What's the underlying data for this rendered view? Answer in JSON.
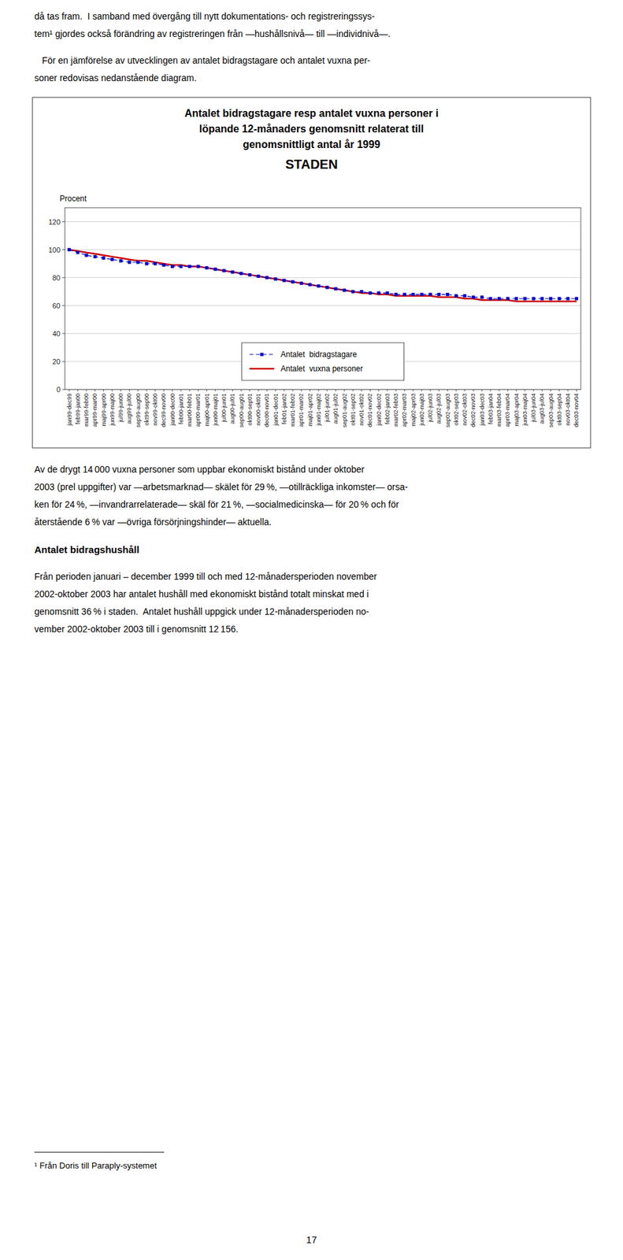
{
  "chart_data": {
    "type": "line",
    "title": "Antalet bidragstagare resp antalet vuxna personer i\nlöpande 12-månaders genomsnitt relaterat till\ngenomsnittligt antal år 1999",
    "subtitle": "STADEN",
    "ylabel": "Procent",
    "categories": [
      "jan99-dec99",
      "feb99-jan00",
      "mar99-feb00",
      "apr99-mar00",
      "maj99-apr00",
      "jun99-maj00",
      "jul99-jun00",
      "aug99-jul00",
      "sep99-aug00",
      "okt99-sep00",
      "nov99-okt00",
      "dec99-nov00",
      "jan00-dec00",
      "feb00-jan01",
      "mar00-feb01",
      "apr00-mar01",
      "maj00-apr01",
      "jun00-maj01",
      "jul00-jun01",
      "aug00-jul01",
      "sep00-aug01",
      "okt00-sep01",
      "nov00-okt01",
      "dec00-nov01",
      "jan01-dec01",
      "feb01-jan02",
      "mar01-feb02",
      "apr01-mar02",
      "maj01-apr02",
      "jun01-maj02",
      "jul01-jun02",
      "aug01-jul02",
      "sep01-aug02",
      "okt01-sep02",
      "nov01-okt02",
      "dec01-nov02",
      "jan02-dec02",
      "feb02-jan03",
      "mar02-feb03",
      "apr02-mar03",
      "maj02-apr03",
      "jun02-maj03",
      "jul02-jun03",
      "aug02-jul03",
      "sep02-aug03",
      "okt02-sep03",
      "nov02-okt03",
      "dec02-nov03",
      "jan03-dec03",
      "feb03-jan04",
      "mar03-feb04",
      "apr03-mar04",
      "maj03-apr04",
      "jun03-maj04",
      "jul03-jun04",
      "aug03-jul04",
      "sep03-aug04",
      "okt03-sep04",
      "nov03-okt04",
      "dec03-nov04"
    ],
    "series": [
      {
        "name": "Antalet  bidragstagare",
        "color": "#0000CC",
        "line_style": "dashed",
        "marker": "square",
        "values": [
          100,
          98,
          96,
          95,
          94,
          93,
          92,
          91,
          91,
          90,
          90,
          89,
          88,
          88,
          88,
          88,
          87,
          86,
          85,
          84,
          83,
          82,
          81,
          80,
          79,
          78,
          77,
          76,
          75,
          74,
          73,
          72,
          71,
          70,
          70,
          69,
          69,
          69,
          68,
          68,
          68,
          68,
          68,
          68,
          68,
          67,
          67,
          66,
          66,
          65,
          65,
          65,
          65,
          65,
          65,
          65,
          65,
          65,
          65,
          65
        ]
      },
      {
        "name": "Antalet  vuxna personer",
        "color": "#CC0000",
        "line_style": "solid",
        "values": [
          100,
          99,
          98,
          97,
          96,
          95,
          94,
          93,
          92,
          92,
          91,
          90,
          89,
          89,
          88,
          88,
          87,
          86,
          85,
          84,
          83,
          82,
          81,
          80,
          79,
          78,
          77,
          76,
          75,
          74,
          73,
          72,
          71,
          70,
          69,
          69,
          68,
          68,
          67,
          67,
          67,
          67,
          67,
          66,
          66,
          66,
          65,
          65,
          64,
          64,
          64,
          64,
          63,
          63,
          63,
          63,
          63,
          63,
          63,
          63
        ]
      }
    ],
    "ylim": [
      0,
      130
    ],
    "yticks": [
      0,
      20,
      40,
      60,
      80,
      100,
      120
    ],
    "grid": true,
    "legend": "bottom"
  },
  "page": {
    "text_above": [
      [
        "då tas fram.  I samband med övergång till nytt dokumentations- och registreringssys-",
        "tem¹ gjordes också förändring av registreringen från ―hushållsnivå― till ―individnivå―."
      ],
      [
        "   För en jämförelse av utvecklingen av antalet bidragstagare och antalet vuxna per-",
        "soner redovisas nedanstående diagram."
      ]
    ],
    "text_below": [
      [
        "Av de drygt 14 000 vuxna personer som uppbar ekonomiskt bistånd under oktober",
        "2003 (prel uppgifter) var ―arbetsmarknad― skälet för 29 %, ―otillräckliga inkomster― orsa-",
        "ken för 24 %, ―invandrarrelaterade― skäl för 21 %, ―socialmedicinska― för 20 % och för",
        "återstående 6 % var ―övriga försörjningshinder― aktuella."
      ]
    ],
    "heading": "Antalet bidragshushåll",
    "text_after_heading": [
      [
        "Från perioden januari – december 1999 till och med 12-månadersperioden november",
        "2002-oktober 2003 har antalet hushåll med ekonomiskt bistånd totalt minskat med i",
        "genomsnitt 36 % i staden.  Antalet hushåll uppgick under 12-månadersperioden no-",
        "vember 2002-oktober 2003 till i genomsnitt 12 156."
      ]
    ],
    "footnote": "¹ Från Doris till Paraply-systemet",
    "page_number": 17
  }
}
